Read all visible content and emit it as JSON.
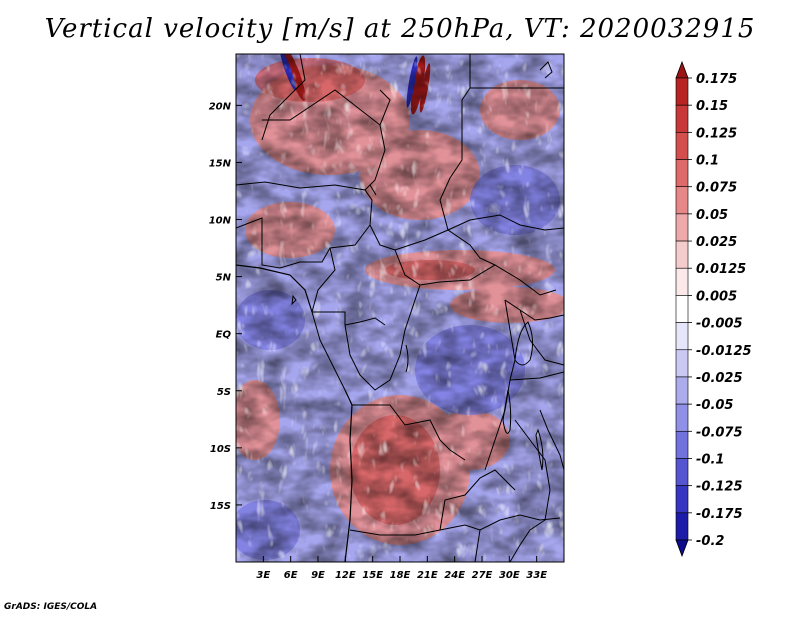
{
  "title": "Vertical velocity [m/s] at 250hPa, VT: 2020032915",
  "credit": "GrADS: IGES/COLA",
  "map": {
    "region": "Central Africa",
    "lon_range": [
      0,
      36
    ],
    "lat_range": [
      -20,
      24.5
    ],
    "lon_ticks": [
      "3E",
      "6E",
      "9E",
      "12E",
      "15E",
      "18E",
      "21E",
      "24E",
      "27E",
      "30E",
      "33E"
    ],
    "lon_tick_values": [
      3,
      6,
      9,
      12,
      15,
      18,
      21,
      24,
      27,
      30,
      33
    ],
    "lat_ticks": [
      "20N",
      "15N",
      "10N",
      "5N",
      "EQ",
      "5S",
      "10S",
      "15S"
    ],
    "lat_tick_values": [
      20,
      15,
      10,
      5,
      0,
      -5,
      -10,
      -15
    ]
  },
  "colorbar": {
    "labels": [
      "0.175",
      "0.15",
      "0.125",
      "0.1",
      "0.075",
      "0.05",
      "0.025",
      "0.0125",
      "0.005",
      "-0.005",
      "-0.0125",
      "-0.025",
      "-0.05",
      "-0.075",
      "-0.1",
      "-0.125",
      "-0.175",
      "-0.2"
    ],
    "colors": [
      "#9b1414",
      "#b82424",
      "#c83838",
      "#d44e4e",
      "#de6a6a",
      "#e68888",
      "#eeaaaa",
      "#f5cccc",
      "#fbe8e8",
      "#ffffff",
      "#e6e6fb",
      "#c9c9f3",
      "#acacec",
      "#9090e6",
      "#7272de",
      "#5555d2",
      "#3636c0",
      "#1c1ca8",
      "#0c0c8c"
    ]
  }
}
